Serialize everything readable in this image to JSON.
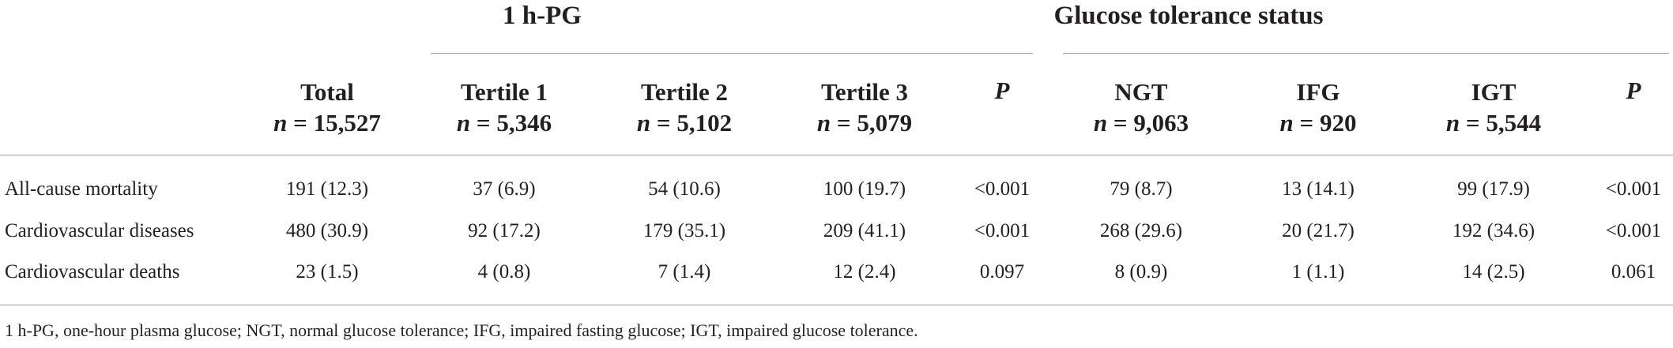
{
  "table": {
    "groups": [
      {
        "label": "1 h-PG"
      },
      {
        "label": "Glucose tolerance status"
      }
    ],
    "columns": [
      {
        "name": "Total",
        "n": "15,527"
      },
      {
        "name": "Tertile 1",
        "n": "5,346"
      },
      {
        "name": "Tertile 2",
        "n": "5,102"
      },
      {
        "name": "Tertile 3",
        "n": "5,079"
      },
      {
        "name": "P",
        "n": ""
      },
      {
        "name": "NGT",
        "n": "9,063"
      },
      {
        "name": "IFG",
        "n": "920"
      },
      {
        "name": "IGT",
        "n": "5,544"
      },
      {
        "name": "P",
        "n": ""
      }
    ],
    "n_prefix": "n = ",
    "rows": [
      {
        "label": "All-cause mortality",
        "cells": [
          "191 (12.3)",
          "37 (6.9)",
          "54 (10.6)",
          "100 (19.7)",
          "<0.001",
          "79 (8.7)",
          "13 (14.1)",
          "99 (17.9)",
          "<0.001"
        ]
      },
      {
        "label": "Cardiovascular diseases",
        "cells": [
          "480 (30.9)",
          "92 (17.2)",
          "179 (35.1)",
          "209 (41.1)",
          "<0.001",
          "268 (29.6)",
          "20 (21.7)",
          "192 (34.6)",
          "<0.001"
        ]
      },
      {
        "label": "Cardiovascular deaths",
        "cells": [
          "23 (1.5)",
          "4 (0.8)",
          "7 (1.4)",
          "12 (2.4)",
          "0.097",
          "8 (0.9)",
          "1 (1.1)",
          "14 (2.5)",
          "0.061"
        ]
      }
    ],
    "footnote": "1 h-PG, one-hour plasma glucose; NGT, normal glucose tolerance; IFG, impaired fasting glucose; IGT, impaired glucose tolerance."
  }
}
